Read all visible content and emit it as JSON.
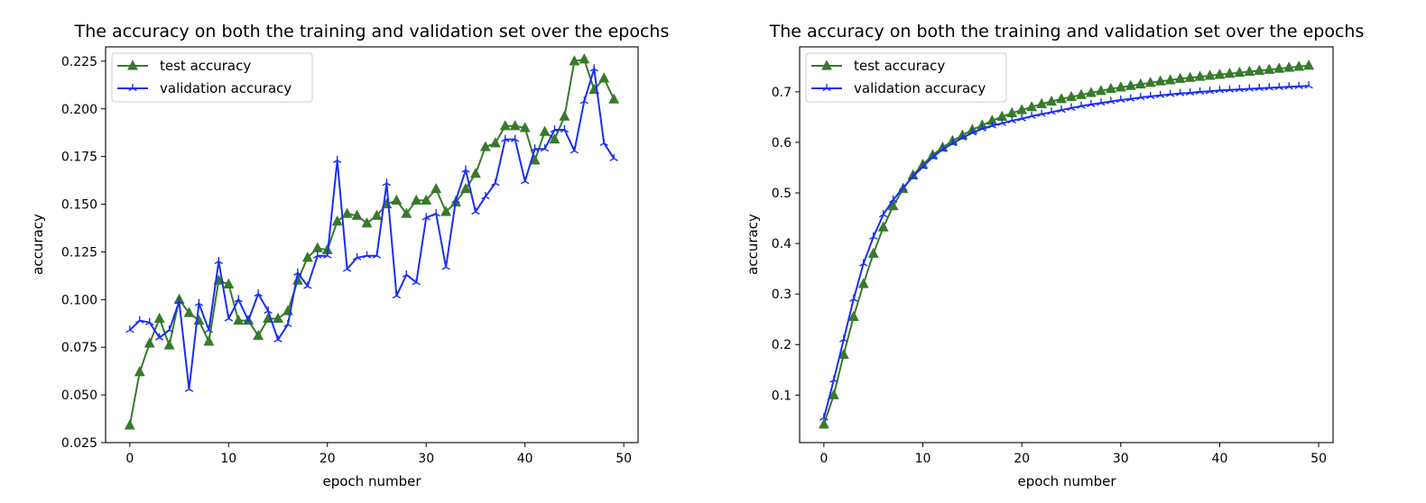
{
  "chart_data": [
    {
      "type": "line",
      "title": "The accuracy on both the training and validation set over the epochs",
      "xlabel": "epoch number",
      "ylabel": "accuracy",
      "xlim": [
        -2.45,
        51.45
      ],
      "ylim": [
        0.025,
        0.2325
      ],
      "xticks": [
        0,
        10,
        20,
        30,
        40,
        50
      ],
      "yticks": [
        0.025,
        0.05,
        0.075,
        0.1,
        0.125,
        0.15,
        0.175,
        0.2,
        0.225
      ],
      "ytick_labels": [
        "0.025",
        "0.050",
        "0.075",
        "0.100",
        "0.125",
        "0.150",
        "0.175",
        "0.200",
        "0.225"
      ],
      "legend_position": "upper left",
      "grid": false,
      "x": [
        0,
        1,
        2,
        3,
        4,
        5,
        6,
        7,
        8,
        9,
        10,
        11,
        12,
        13,
        14,
        15,
        16,
        17,
        18,
        19,
        20,
        21,
        22,
        23,
        24,
        25,
        26,
        27,
        28,
        29,
        30,
        31,
        32,
        33,
        34,
        35,
        36,
        37,
        38,
        39,
        40,
        41,
        42,
        43,
        44,
        45,
        46,
        47,
        48,
        49
      ],
      "series": [
        {
          "name": "test accuracy",
          "color": "#387a2b",
          "marker": "triangle",
          "values": [
            0.034,
            0.062,
            0.077,
            0.09,
            0.076,
            0.1,
            0.093,
            0.089,
            0.078,
            0.11,
            0.108,
            0.089,
            0.089,
            0.081,
            0.09,
            0.09,
            0.094,
            0.11,
            0.122,
            0.127,
            0.126,
            0.141,
            0.145,
            0.144,
            0.14,
            0.144,
            0.15,
            0.152,
            0.145,
            0.152,
            0.152,
            0.158,
            0.146,
            0.151,
            0.158,
            0.166,
            0.18,
            0.182,
            0.191,
            0.191,
            0.19,
            0.173,
            0.188,
            0.184,
            0.196,
            0.225,
            0.226,
            0.21,
            0.216,
            0.205
          ]
        },
        {
          "name": "validation accuracy",
          "color": "#1a2ef5",
          "marker": "tri",
          "values": [
            0.084,
            0.089,
            0.088,
            0.08,
            0.084,
            0.099,
            0.053,
            0.098,
            0.084,
            0.12,
            0.09,
            0.1,
            0.089,
            0.103,
            0.094,
            0.079,
            0.087,
            0.114,
            0.107,
            0.123,
            0.123,
            0.173,
            0.116,
            0.122,
            0.123,
            0.123,
            0.161,
            0.102,
            0.113,
            0.109,
            0.143,
            0.145,
            0.117,
            0.152,
            0.168,
            0.146,
            0.154,
            0.161,
            0.184,
            0.184,
            0.162,
            0.179,
            0.179,
            0.189,
            0.189,
            0.178,
            0.204,
            0.221,
            0.182,
            0.174
          ]
        }
      ]
    },
    {
      "type": "line",
      "title": "The accuracy on both the training and validation set over the epochs",
      "xlabel": "epoch number",
      "ylabel": "accuracy",
      "xlim": [
        -2.45,
        51.45
      ],
      "ylim": [
        0.006,
        0.789
      ],
      "xticks": [
        0,
        10,
        20,
        30,
        40,
        50
      ],
      "yticks": [
        0.1,
        0.2,
        0.3,
        0.4,
        0.5,
        0.6,
        0.7
      ],
      "ytick_labels": [
        "0.1",
        "0.2",
        "0.3",
        "0.4",
        "0.5",
        "0.6",
        "0.7"
      ],
      "legend_position": "upper left",
      "grid": false,
      "x": [
        0,
        1,
        2,
        3,
        4,
        5,
        6,
        7,
        8,
        9,
        10,
        11,
        12,
        13,
        14,
        15,
        16,
        17,
        18,
        19,
        20,
        21,
        22,
        23,
        24,
        25,
        26,
        27,
        28,
        29,
        30,
        31,
        32,
        33,
        34,
        35,
        36,
        37,
        38,
        39,
        40,
        41,
        42,
        43,
        44,
        45,
        46,
        47,
        48,
        49
      ],
      "series": [
        {
          "name": "test accuracy",
          "color": "#387a2b",
          "marker": "triangle",
          "values": [
            0.042,
            0.1,
            0.18,
            0.255,
            0.32,
            0.38,
            0.432,
            0.474,
            0.508,
            0.535,
            0.556,
            0.575,
            0.59,
            0.603,
            0.614,
            0.625,
            0.634,
            0.643,
            0.651,
            0.658,
            0.664,
            0.67,
            0.676,
            0.681,
            0.686,
            0.69,
            0.694,
            0.698,
            0.702,
            0.706,
            0.709,
            0.712,
            0.715,
            0.718,
            0.721,
            0.723,
            0.726,
            0.728,
            0.73,
            0.732,
            0.734,
            0.736,
            0.738,
            0.74,
            0.742,
            0.744,
            0.746,
            0.748,
            0.75,
            0.752
          ]
        },
        {
          "name": "validation accuracy",
          "color": "#1a2ef5",
          "marker": "tri",
          "values": [
            0.055,
            0.13,
            0.21,
            0.29,
            0.36,
            0.413,
            0.457,
            0.486,
            0.51,
            0.532,
            0.552,
            0.571,
            0.586,
            0.598,
            0.609,
            0.619,
            0.627,
            0.633,
            0.638,
            0.643,
            0.647,
            0.652,
            0.656,
            0.66,
            0.664,
            0.668,
            0.672,
            0.675,
            0.678,
            0.681,
            0.684,
            0.686,
            0.689,
            0.691,
            0.693,
            0.695,
            0.697,
            0.698,
            0.7,
            0.701,
            0.703,
            0.704,
            0.705,
            0.706,
            0.707,
            0.708,
            0.709,
            0.71,
            0.711,
            0.712
          ]
        }
      ]
    }
  ]
}
